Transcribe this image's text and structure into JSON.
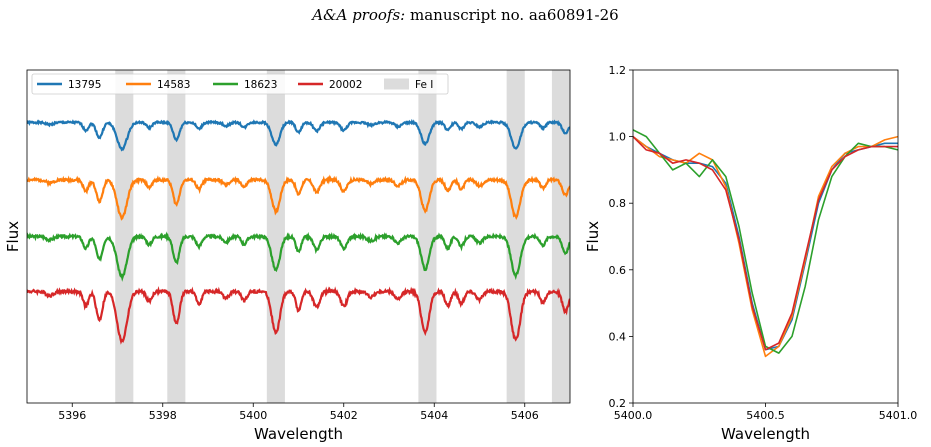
{
  "header": {
    "journal": "A&A proofs:",
    "manuscript": "manuscript no. aa60891-26"
  },
  "chart_data": [
    {
      "type": "line",
      "xlabel": "Wavelength",
      "ylabel": "Flux",
      "xlim": [
        5395.0,
        5407.0
      ],
      "ylim": [
        0.0,
        1.0
      ],
      "xticks": [
        5396,
        5398,
        5400,
        5402,
        5404,
        5406
      ],
      "yticks_shown": false,
      "legend": {
        "placement": "top",
        "entries": [
          "13795",
          "14583",
          "18623",
          "20002",
          "Fe I"
        ]
      },
      "fe_i_bands": [
        [
          5396.95,
          5397.35
        ],
        [
          5398.1,
          5398.5
        ],
        [
          5400.3,
          5400.7
        ],
        [
          5403.65,
          5404.05
        ],
        [
          5405.6,
          5406.0
        ],
        [
          5406.6,
          5407.0
        ]
      ],
      "band_color": "#dcdcdc",
      "lines": [
        {
          "center": 5395.5,
          "depth": 0.06,
          "width": 0.08
        },
        {
          "center": 5396.3,
          "depth": 0.22,
          "width": 0.06
        },
        {
          "center": 5396.6,
          "depth": 0.42,
          "width": 0.07
        },
        {
          "center": 5397.1,
          "depth": 0.74,
          "width": 0.11
        },
        {
          "center": 5397.7,
          "depth": 0.15,
          "width": 0.06
        },
        {
          "center": 5398.3,
          "depth": 0.48,
          "width": 0.07
        },
        {
          "center": 5398.8,
          "depth": 0.18,
          "width": 0.06
        },
        {
          "center": 5399.4,
          "depth": 0.1,
          "width": 0.07
        },
        {
          "center": 5399.8,
          "depth": 0.14,
          "width": 0.06
        },
        {
          "center": 5400.5,
          "depth": 0.62,
          "width": 0.09
        },
        {
          "center": 5401.0,
          "depth": 0.28,
          "width": 0.06
        },
        {
          "center": 5401.4,
          "depth": 0.24,
          "width": 0.07
        },
        {
          "center": 5402.0,
          "depth": 0.22,
          "width": 0.07
        },
        {
          "center": 5402.6,
          "depth": 0.08,
          "width": 0.08
        },
        {
          "center": 5403.2,
          "depth": 0.12,
          "width": 0.07
        },
        {
          "center": 5403.8,
          "depth": 0.6,
          "width": 0.09
        },
        {
          "center": 5404.3,
          "depth": 0.22,
          "width": 0.06
        },
        {
          "center": 5404.6,
          "depth": 0.18,
          "width": 0.06
        },
        {
          "center": 5405.0,
          "depth": 0.12,
          "width": 0.07
        },
        {
          "center": 5405.8,
          "depth": 0.72,
          "width": 0.1
        },
        {
          "center": 5406.4,
          "depth": 0.16,
          "width": 0.06
        },
        {
          "center": 5406.9,
          "depth": 0.3,
          "width": 0.07
        }
      ],
      "series": [
        {
          "name": "13795",
          "color": "#1f77b4",
          "offset": 0.82,
          "scale": 0.09,
          "seed": 1
        },
        {
          "name": "14583",
          "color": "#ff7f0e",
          "offset": 0.64,
          "scale": 0.12,
          "seed": 2
        },
        {
          "name": "18623",
          "color": "#2ca02c",
          "offset": 0.47,
          "scale": 0.12,
          "seed": 3
        },
        {
          "name": "20002",
          "color": "#d62728",
          "offset": 0.3,
          "scale": 0.14,
          "seed": 4
        }
      ]
    },
    {
      "type": "line",
      "xlabel": "Wavelength",
      "ylabel": "Flux",
      "xlim": [
        5400.0,
        5401.0
      ],
      "ylim": [
        0.2,
        1.2
      ],
      "xticks": [
        5400.0,
        5400.5,
        5401.0
      ],
      "xtick_labels": [
        "5400.0",
        "5400.5",
        "5401.0"
      ],
      "yticks": [
        0.2,
        0.4,
        0.6,
        0.8,
        1.0,
        1.2
      ],
      "ytick_labels": [
        "0.2",
        "0.4",
        "0.6",
        "0.8",
        "1.0",
        "1.2"
      ],
      "series": [
        {
          "name": "13795",
          "color": "#1f77b4",
          "x": [
            5400.0,
            5400.05,
            5400.1,
            5400.15,
            5400.2,
            5400.25,
            5400.3,
            5400.35,
            5400.4,
            5400.45,
            5400.5,
            5400.55,
            5400.6,
            5400.65,
            5400.7,
            5400.75,
            5400.8,
            5400.85,
            5400.9,
            5400.95,
            5401.0
          ],
          "y": [
            1.0,
            0.97,
            0.95,
            0.93,
            0.92,
            0.92,
            0.91,
            0.86,
            0.7,
            0.5,
            0.36,
            0.37,
            0.45,
            0.62,
            0.8,
            0.9,
            0.95,
            0.96,
            0.97,
            0.98,
            0.98
          ]
        },
        {
          "name": "14583",
          "color": "#ff7f0e",
          "x": [
            5400.0,
            5400.05,
            5400.1,
            5400.15,
            5400.2,
            5400.25,
            5400.3,
            5400.35,
            5400.4,
            5400.45,
            5400.5,
            5400.55,
            5400.6,
            5400.65,
            5400.7,
            5400.75,
            5400.8,
            5400.85,
            5400.9,
            5400.95,
            5401.0
          ],
          "y": [
            1.0,
            0.97,
            0.94,
            0.93,
            0.92,
            0.95,
            0.93,
            0.85,
            0.68,
            0.48,
            0.34,
            0.37,
            0.46,
            0.63,
            0.82,
            0.91,
            0.95,
            0.97,
            0.97,
            0.99,
            1.0
          ]
        },
        {
          "name": "18623",
          "color": "#2ca02c",
          "x": [
            5400.0,
            5400.05,
            5400.1,
            5400.15,
            5400.2,
            5400.25,
            5400.3,
            5400.35,
            5400.4,
            5400.45,
            5400.5,
            5400.55,
            5400.6,
            5400.65,
            5400.7,
            5400.75,
            5400.8,
            5400.85,
            5400.9,
            5400.95,
            5401.0
          ],
          "y": [
            1.02,
            1.0,
            0.95,
            0.9,
            0.92,
            0.88,
            0.93,
            0.88,
            0.73,
            0.53,
            0.37,
            0.35,
            0.4,
            0.55,
            0.75,
            0.88,
            0.94,
            0.98,
            0.97,
            0.97,
            0.96
          ]
        },
        {
          "name": "20002",
          "color": "#d62728",
          "x": [
            5400.0,
            5400.05,
            5400.1,
            5400.15,
            5400.2,
            5400.25,
            5400.3,
            5400.35,
            5400.4,
            5400.45,
            5400.5,
            5400.55,
            5400.6,
            5400.65,
            5400.7,
            5400.75,
            5400.8,
            5400.85,
            5400.9,
            5400.95,
            5401.0
          ],
          "y": [
            1.0,
            0.96,
            0.95,
            0.92,
            0.93,
            0.92,
            0.9,
            0.84,
            0.69,
            0.49,
            0.36,
            0.38,
            0.47,
            0.64,
            0.81,
            0.9,
            0.94,
            0.96,
            0.97,
            0.97,
            0.97
          ]
        }
      ]
    }
  ]
}
